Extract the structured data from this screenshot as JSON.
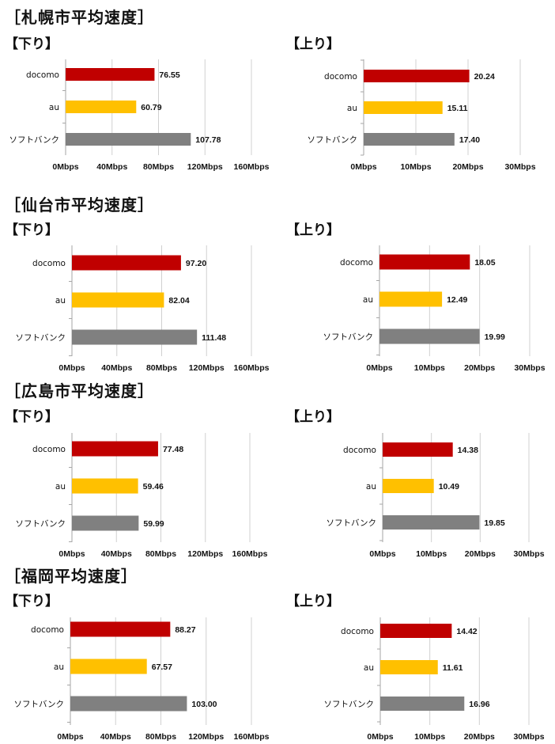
{
  "colors": {
    "docomo": "#c00000",
    "au": "#ffc000",
    "softbank": "#808080",
    "grid": "#d0d0d0"
  },
  "sections": [
    {
      "title": "［札幌市平均速度］"
    },
    {
      "title": "［仙台市平均速度］"
    },
    {
      "title": "［広島市平均速度］"
    },
    {
      "title": "［福岡平均速度］"
    }
  ],
  "chart_data": [
    {
      "type": "bar",
      "orientation": "horizontal",
      "city": "札幌市",
      "title": "【下り】",
      "categories": [
        "docomo",
        "au",
        "ソフトバンク"
      ],
      "values": [
        76.55,
        60.79,
        107.78
      ],
      "value_labels": [
        "76.55",
        "60.79",
        "107.78"
      ],
      "xlim": [
        0,
        160
      ],
      "ticks": [
        "0Mbps",
        "40Mbps",
        "80Mbps",
        "120Mbps",
        "160Mbps"
      ],
      "grid": true
    },
    {
      "type": "bar",
      "orientation": "horizontal",
      "city": "札幌市",
      "title": "【上り】",
      "categories": [
        "docomo",
        "au",
        "ソフトバンク"
      ],
      "values": [
        20.24,
        15.11,
        17.4
      ],
      "value_labels": [
        "20.24",
        "15.11",
        "17.40"
      ],
      "xlim": [
        0,
        30
      ],
      "ticks": [
        "0Mbps",
        "10Mbps",
        "20Mbps",
        "30Mbps"
      ],
      "grid": true
    },
    {
      "type": "bar",
      "orientation": "horizontal",
      "city": "仙台市",
      "title": "【下り】",
      "categories": [
        "docomo",
        "au",
        "ソフトバンク"
      ],
      "values": [
        97.2,
        82.04,
        111.48
      ],
      "value_labels": [
        "97.20",
        "82.04",
        "111.48"
      ],
      "xlim": [
        0,
        160
      ],
      "ticks": [
        "0Mbps",
        "40Mbps",
        "80Mbps",
        "120Mbps",
        "160Mbps"
      ],
      "grid": true
    },
    {
      "type": "bar",
      "orientation": "horizontal",
      "city": "仙台市",
      "title": "【上り】",
      "categories": [
        "docomo",
        "au",
        "ソフトバンク"
      ],
      "values": [
        18.05,
        12.49,
        19.99
      ],
      "value_labels": [
        "18.05",
        "12.49",
        "19.99"
      ],
      "xlim": [
        0,
        30
      ],
      "ticks": [
        "0Mbps",
        "10Mbps",
        "20Mbps",
        "30Mbps"
      ],
      "grid": true
    },
    {
      "type": "bar",
      "orientation": "horizontal",
      "city": "広島市",
      "title": "【下り】",
      "categories": [
        "docomo",
        "au",
        "ソフトバンク"
      ],
      "values": [
        77.48,
        59.46,
        59.99
      ],
      "value_labels": [
        "77.48",
        "59.46",
        "59.99"
      ],
      "xlim": [
        0,
        160
      ],
      "ticks": [
        "0Mbps",
        "40Mbps",
        "80Mbps",
        "120Mbps",
        "160Mbps"
      ],
      "grid": true
    },
    {
      "type": "bar",
      "orientation": "horizontal",
      "city": "広島市",
      "title": "【上り】",
      "categories": [
        "docomo",
        "au",
        "ソフトバンク"
      ],
      "values": [
        14.38,
        10.49,
        19.85
      ],
      "value_labels": [
        "14.38",
        "10.49",
        "19.85"
      ],
      "xlim": [
        0,
        30
      ],
      "ticks": [
        "0Mbps",
        "10Mbps",
        "20Mbps",
        "30Mbps"
      ],
      "grid": true
    },
    {
      "type": "bar",
      "orientation": "horizontal",
      "city": "福岡",
      "title": "【下り】",
      "categories": [
        "docomo",
        "au",
        "ソフトバンク"
      ],
      "values": [
        88.27,
        67.57,
        103.0
      ],
      "value_labels": [
        "88.27",
        "67.57",
        "103.00"
      ],
      "xlim": [
        0,
        160
      ],
      "ticks": [
        "0Mbps",
        "40Mbps",
        "80Mbps",
        "120Mbps",
        "160Mbps"
      ],
      "grid": true
    },
    {
      "type": "bar",
      "orientation": "horizontal",
      "city": "福岡",
      "title": "【上り】",
      "categories": [
        "docomo",
        "au",
        "ソフトバンク"
      ],
      "values": [
        14.42,
        11.61,
        16.96
      ],
      "value_labels": [
        "14.42",
        "11.61",
        "16.96"
      ],
      "xlim": [
        0,
        30
      ],
      "ticks": [
        "0Mbps",
        "10Mbps",
        "20Mbps",
        "30Mbps"
      ],
      "grid": true
    }
  ]
}
